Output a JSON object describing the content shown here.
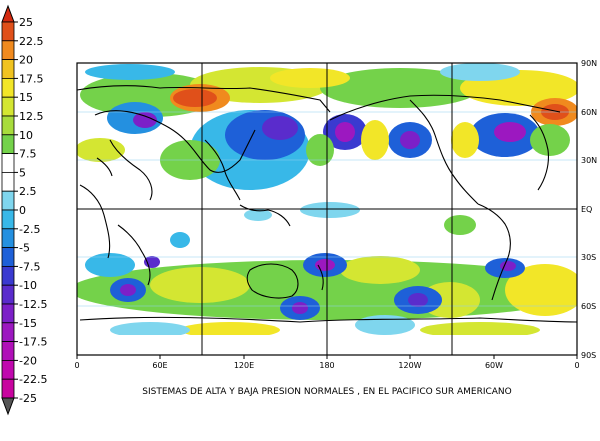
{
  "colorbar": {
    "labels": [
      "25",
      "22.5",
      "20",
      "17.5",
      "15",
      "12.5",
      "10",
      "7.5",
      "5",
      "2.5",
      "0",
      "-2.5",
      "-5",
      "-7.5",
      "-10",
      "-12.5",
      "-15",
      "-17.5",
      "-20",
      "-22.5",
      "-25"
    ],
    "colors": [
      "#e0501a",
      "#f08a1e",
      "#f0c320",
      "#f2e628",
      "#d4e632",
      "#a8dc3c",
      "#74d24a",
      "#ffffff",
      "#ffffff",
      "#7fd6ee",
      "#38b8e8",
      "#2490e0",
      "#1e60d8",
      "#3a3ad0",
      "#5a2ccc",
      "#7c20c8",
      "#9c18c0",
      "#b010b8",
      "#c008ae",
      "#c8049f"
    ]
  },
  "map": {
    "lat_labels": [
      "90N",
      "60N",
      "30N",
      "EQ",
      "30S",
      "60S",
      "90S"
    ],
    "lon_labels": [
      "0",
      "60E",
      "120E",
      "180",
      "120W",
      "60W",
      "0"
    ]
  },
  "caption": "SISTEMAS DE ALTA Y BAJA PRESION NORMALES , EN EL PACIFICO SUR AMERICANO"
}
